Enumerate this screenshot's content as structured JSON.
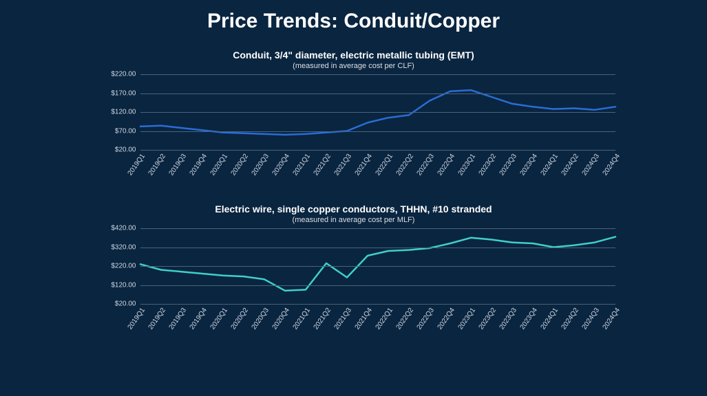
{
  "page": {
    "title": "Price Trends: Conduit/Copper",
    "background_color": "#0a2540",
    "text_color": "#ffffff",
    "grid_color": "#4a647c"
  },
  "categories": [
    "2019Q1",
    "2019Q2",
    "2019Q3",
    "2019Q4",
    "2020Q1",
    "2020Q2",
    "2020Q3",
    "2020Q4",
    "2021Q1",
    "2021Q2",
    "2021Q3",
    "2021Q4",
    "2022Q1",
    "2022Q2",
    "2022Q3",
    "2022Q4",
    "2023Q1",
    "2023Q2",
    "2023Q3",
    "2023Q4",
    "2024Q1",
    "2024Q2",
    "2024Q3",
    "2024Q4"
  ],
  "charts": [
    {
      "id": "conduit",
      "type": "line",
      "title": "Conduit, 3/4\" diameter, electric metallic tubing (EMT)",
      "subtitle": "(measured in average cost per CLF)",
      "line_color": "#2a6dd6",
      "line_width": 2.5,
      "ylim": [
        20,
        220
      ],
      "ytick_step": 50,
      "ytick_prefix": "$",
      "ytick_decimals": 2,
      "values": [
        82,
        84,
        78,
        72,
        66,
        64,
        62,
        60,
        62,
        66,
        70,
        92,
        105,
        112,
        150,
        175,
        178,
        160,
        142,
        134,
        128,
        130,
        126,
        134
      ]
    },
    {
      "id": "copper",
      "type": "line",
      "title": "Electric wire, single copper conductors, THHN, #10 stranded",
      "subtitle": "(measured in average cost per MLF)",
      "line_color": "#3fd0c9",
      "line_width": 2.5,
      "ylim": [
        20,
        420
      ],
      "ytick_step": 100,
      "ytick_prefix": "$",
      "ytick_decimals": 2,
      "values": [
        230,
        200,
        190,
        180,
        170,
        165,
        150,
        90,
        95,
        235,
        160,
        275,
        300,
        305,
        315,
        340,
        370,
        360,
        345,
        340,
        320,
        330,
        345,
        375
      ]
    }
  ]
}
